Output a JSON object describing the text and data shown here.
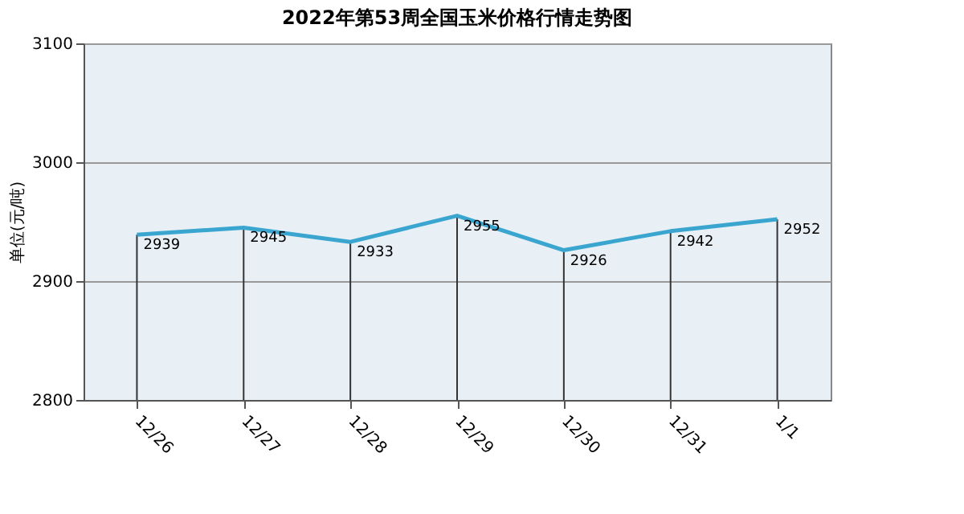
{
  "chart_data": {
    "type": "line",
    "title": "2022年第53周全国玉米价格行情走势图",
    "ylabel": "单位(元/吨)",
    "categories": [
      "12/26",
      "12/27",
      "12/28",
      "12/29",
      "12/30",
      "12/31",
      "1/1"
    ],
    "series": [
      {
        "color": "#3aa6d0",
        "values": [
          2939,
          2945,
          2933,
          2955,
          2926,
          2942,
          2952
        ]
      }
    ],
    "ylim": [
      2800,
      3100
    ],
    "yticks": [
      2800,
      2900,
      3000,
      3100
    ],
    "grid": "y",
    "data_labels": true,
    "marker": "none",
    "line_style": "solid",
    "legend": false
  }
}
